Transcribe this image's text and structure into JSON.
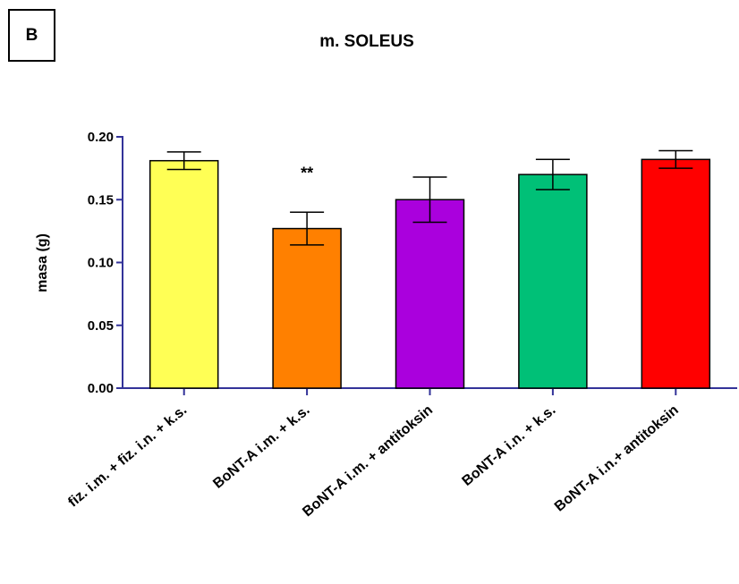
{
  "panel_label": "B",
  "chart_data": {
    "type": "bar",
    "title": "m. SOLEUS",
    "xlabel": "",
    "ylabel": "masa (g)",
    "ylim": [
      0,
      0.2
    ],
    "yticks": [
      "0.00",
      "0.05",
      "0.10",
      "0.15",
      "0.20"
    ],
    "ytick_values": [
      0,
      0.05,
      0.1,
      0.15,
      0.2
    ],
    "categories": [
      "fiz. i.m. + fiz. i.n. + k.s.",
      "BoNT-A i.m. + k.s.",
      "BoNT-A i.m. + antitoksin",
      "BoNT-A i.n. + k.s.",
      "BoNT-A i.n.+ antitoksin"
    ],
    "values": [
      0.181,
      0.127,
      0.15,
      0.17,
      0.182
    ],
    "errors": [
      0.007,
      0.013,
      0.018,
      0.012,
      0.007
    ],
    "colors": [
      "#ffff55",
      "#ff8000",
      "#aa00dd",
      "#00c077",
      "#ff0000"
    ],
    "annotations": [
      {
        "category_index": 1,
        "text": "**"
      }
    ],
    "axis_color": "#333399",
    "grid": false
  }
}
